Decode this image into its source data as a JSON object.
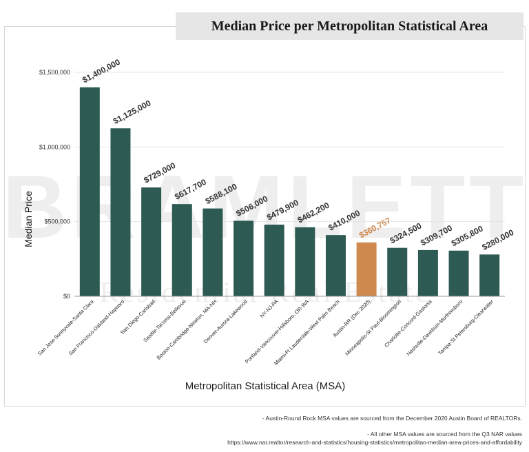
{
  "chart_data": {
    "type": "bar",
    "title": "Median Price per Metropolitan Statistical Area",
    "xlabel": "Metropolitan Statistical Area (MSA)",
    "ylabel": "Median Price",
    "ylim": [
      0,
      1500000
    ],
    "yticks": [
      0,
      500000,
      1000000,
      1500000
    ],
    "ytick_labels": [
      "$0",
      "$500,000",
      "$1,000,000",
      "$1,500,000"
    ],
    "grid": true,
    "categories": [
      "San Jose-Sunnyvale-Santa Clara",
      "San Francisco-Oakland-Hayward",
      "San Diego-Carlsbad",
      "Seattle-Tacoma-Bellevue",
      "Boston-Cambridge-Newton, MA-NH",
      "Denver-Aurora-Lakewood",
      "NY-NJ-PA",
      "Portland-Vancouver-Hillsboro, OR-WA",
      "Miami-Ft Lauderdale-West Palm Beach",
      "Austin-RR (Dec 2020)",
      "Minneapolis-St Paul-Bloomington",
      "Charlotte-Concord-Gastonia",
      "Nashville-Davidson-Murfreesboro",
      "Tampa-St Petersburg-Clearwater"
    ],
    "values": [
      1400000,
      1125000,
      729000,
      617700,
      588100,
      506000,
      479900,
      462200,
      410000,
      360757,
      324500,
      309700,
      305800,
      280000
    ],
    "value_labels": [
      "$1,400,000",
      "$1,125,000",
      "$729,000",
      "$617,700",
      "$588,100",
      "$506,000",
      "$479,900",
      "$462,200",
      "$410,000",
      "$360,757",
      "$324,500",
      "$309,700",
      "$305,800",
      "$280,000"
    ],
    "highlight_index": 9,
    "colors": {
      "bar": "#2d5a52",
      "highlight": "#cf8a4f",
      "label": "#333333",
      "highlight_label": "#cf8a4f",
      "grid": "#e4e4e4"
    }
  },
  "watermark": {
    "main": "BRAMLETT",
    "sub": "Residential Real Estate",
    "color": "#eeeeee"
  },
  "footnotes": [
    "- Austin-Round Rock MSA values are sourced from the December 2020 Austin Board of REALTORs.",
    "- All other MSA values are sourced from the Q3 NAR values",
    "https://www.nar.realtor/research-and-statistics/housing-statistics/metropolitan-median-area-prices-and-affordability"
  ]
}
